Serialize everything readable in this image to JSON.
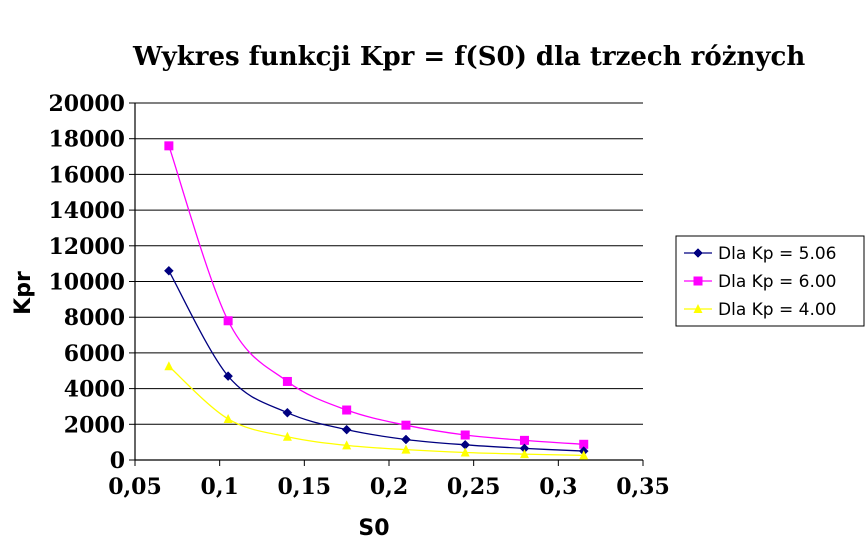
{
  "chart_data": {
    "type": "line",
    "title": "Wykres funkcji Kpr = f(S0) dla trzech różnych",
    "xlabel": "S0",
    "ylabel": "Kpr",
    "xlim": [
      0.05,
      0.35
    ],
    "ylim": [
      0,
      20000
    ],
    "x_ticks": [
      0.05,
      0.1,
      0.15,
      0.2,
      0.25,
      0.3,
      0.35
    ],
    "x_tick_labels": [
      "0,05",
      "0,1",
      "0,15",
      "0,2",
      "0,25",
      "0,3",
      "0,35"
    ],
    "y_ticks": [
      0,
      2000,
      4000,
      6000,
      8000,
      10000,
      12000,
      14000,
      16000,
      18000,
      20000
    ],
    "y_tick_labels": [
      "0",
      "2000",
      "4000",
      "6000",
      "8000",
      "10000",
      "12000",
      "14000",
      "16000",
      "18000",
      "20000"
    ],
    "grid": "horizontal",
    "legend_position": "right",
    "x": [
      0.07,
      0.105,
      0.14,
      0.175,
      0.21,
      0.245,
      0.28,
      0.315
    ],
    "series": [
      {
        "name": "Dla Kp = 5.06",
        "color": "#000080",
        "marker": "diamond",
        "values": [
          10600,
          4700,
          2650,
          1700,
          1150,
          850,
          650,
          500
        ]
      },
      {
        "name": "Dla Kp = 6.00",
        "color": "#ff00ff",
        "marker": "square",
        "values": [
          17600,
          7800,
          4400,
          2800,
          1950,
          1400,
          1100,
          880
        ]
      },
      {
        "name": "Dla Kp = 4.00",
        "color": "#ffff00",
        "marker": "triangle",
        "values": [
          5250,
          2300,
          1300,
          820,
          580,
          420,
          330,
          260
        ]
      }
    ]
  }
}
